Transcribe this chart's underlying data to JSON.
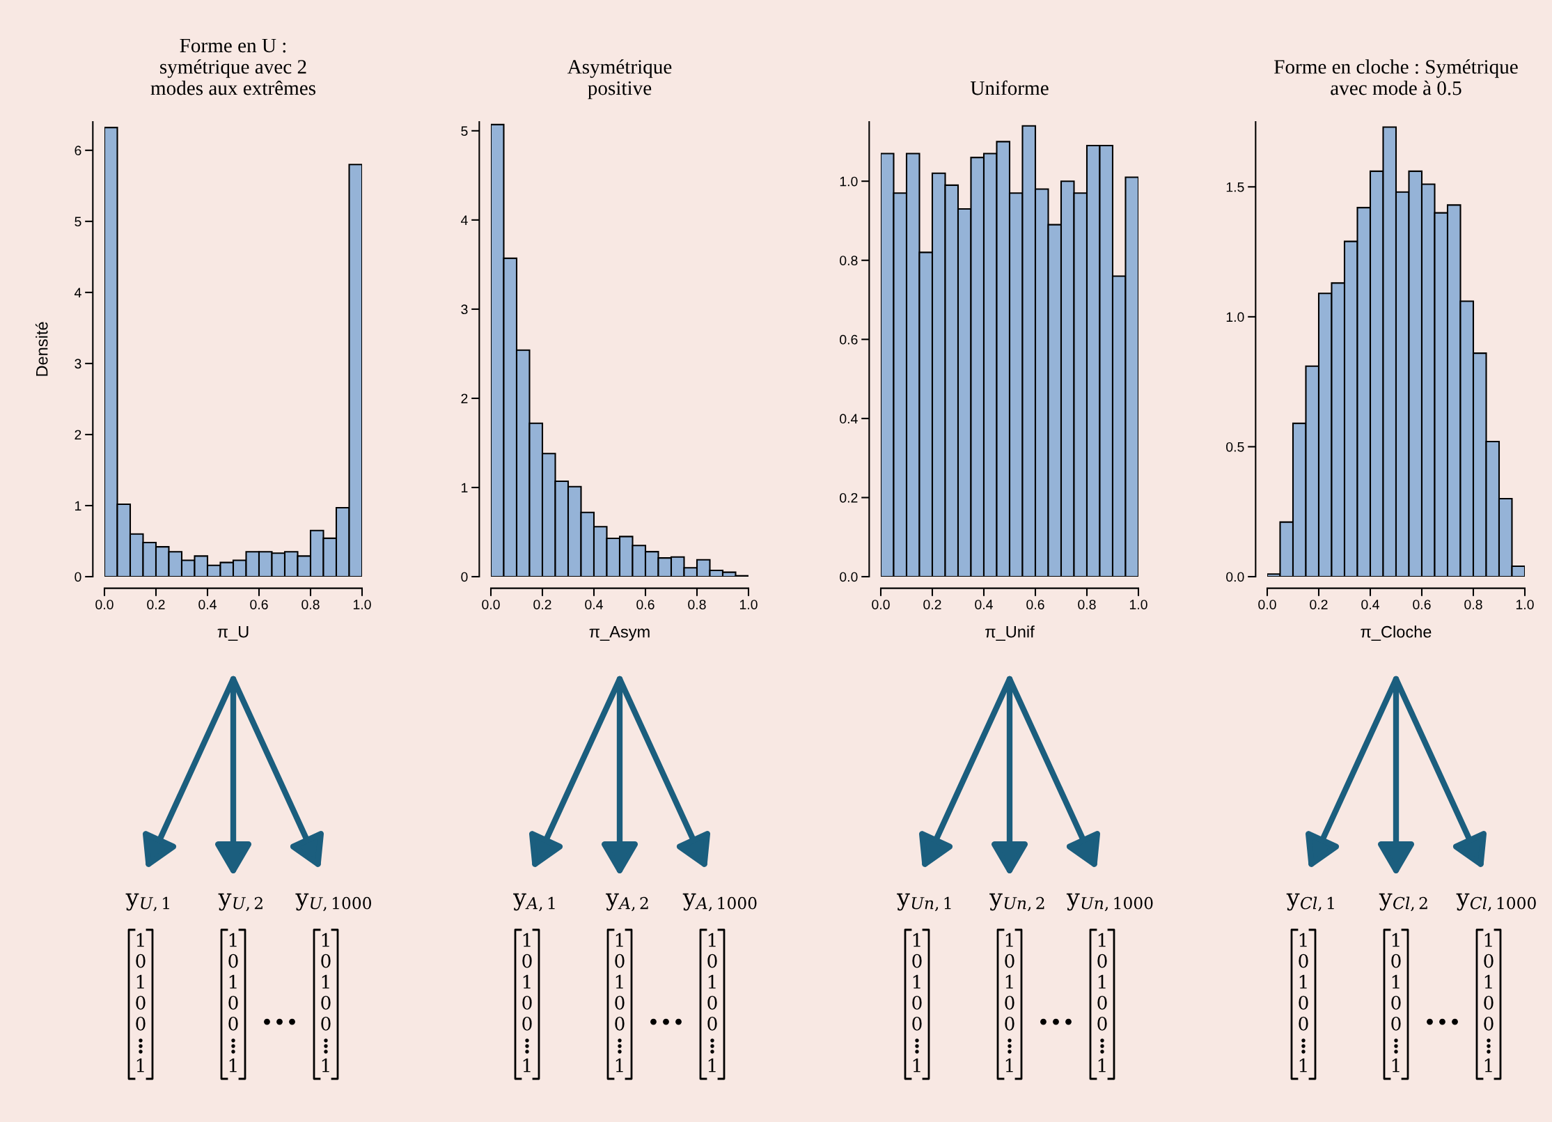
{
  "chart_data": [
    {
      "type": "histogram",
      "title": "Forme en U :\nsymétrique avec 2\nmodes aux extrêmes",
      "xlabel": "π_U",
      "ylabel": "Densité",
      "color": "#95b3d7",
      "bins": [
        0,
        0.05,
        0.1,
        0.15,
        0.2,
        0.25,
        0.3,
        0.35,
        0.4,
        0.45,
        0.5,
        0.55,
        0.6,
        0.65,
        0.7,
        0.75,
        0.8,
        0.85,
        0.9,
        0.95,
        1.0
      ],
      "values": [
        6.32,
        1.02,
        0.6,
        0.48,
        0.42,
        0.35,
        0.23,
        0.29,
        0.16,
        0.2,
        0.23,
        0.35,
        0.35,
        0.33,
        0.35,
        0.29,
        0.65,
        0.54,
        0.97,
        5.8
      ],
      "xlim": [
        0,
        1
      ],
      "xticks": [
        {
          "value": 0,
          "label": "0.0"
        },
        {
          "value": 0.2,
          "label": "0.2"
        },
        {
          "value": 0.4,
          "label": "0.4"
        },
        {
          "value": 0.6,
          "label": "0.6"
        },
        {
          "value": 0.8,
          "label": "0.8"
        },
        {
          "value": 1,
          "label": "1.0"
        }
      ],
      "ylim": [
        0,
        6.4
      ],
      "yticks": [
        0,
        1,
        2,
        3,
        4,
        5,
        6
      ],
      "annotations": [
        "y$_{U,1}$",
        "y$_{U,2}$",
        "y$_{U,1000}$",
        "1\n0\n1\n0\n0\n1",
        "1\n0\n1\n0\n0\n1",
        "1\n0\n1\n0\n0\n1",
        "•••"
      ]
    },
    {
      "type": "histogram",
      "title": "Asymétrique\npositive",
      "xlabel": "π_Asym",
      "color": "#95b3d7",
      "bins": [
        0,
        0.05,
        0.1,
        0.15,
        0.2,
        0.25,
        0.3,
        0.35,
        0.4,
        0.45,
        0.5,
        0.55,
        0.6,
        0.65,
        0.7,
        0.75,
        0.8,
        0.85,
        0.9,
        0.95,
        1.0
      ],
      "values": [
        5.07,
        3.57,
        2.54,
        1.72,
        1.38,
        1.07,
        1.01,
        0.72,
        0.56,
        0.43,
        0.45,
        0.35,
        0.28,
        0.21,
        0.22,
        0.1,
        0.19,
        0.07,
        0.05,
        0.01
      ],
      "xlim": [
        0,
        1
      ],
      "xticks": [
        {
          "value": 0,
          "label": "0.0"
        },
        {
          "value": 0.2,
          "label": "0.2"
        },
        {
          "value": 0.4,
          "label": "0.4"
        },
        {
          "value": 0.6,
          "label": "0.6"
        },
        {
          "value": 0.8,
          "label": "0.8"
        },
        {
          "value": 1,
          "label": "1.0"
        }
      ],
      "ylim": [
        0,
        5.1
      ],
      "yticks": [
        0,
        1,
        2,
        3,
        4,
        5
      ],
      "annotations": [
        "y$_{A,1}$",
        "y$_{A,2}$",
        "y$_{A,1000}$",
        "1\n0\n1\n0\n0\n1",
        "1\n0\n1\n0\n0\n1",
        "1\n0\n1\n0\n0\n1",
        "•••"
      ]
    },
    {
      "type": "histogram",
      "title": "Uniforme",
      "xlabel": "π_Unif",
      "color": "#95b3d7",
      "bins": [
        0,
        0.05,
        0.1,
        0.15,
        0.2,
        0.25,
        0.3,
        0.35,
        0.4,
        0.45,
        0.5,
        0.55,
        0.6,
        0.65,
        0.7,
        0.75,
        0.8,
        0.85,
        0.9,
        0.95,
        1.0
      ],
      "values": [
        1.07,
        0.97,
        1.07,
        0.82,
        1.02,
        0.99,
        0.93,
        1.06,
        1.07,
        1.1,
        0.97,
        1.14,
        0.98,
        0.89,
        1.0,
        0.97,
        1.09,
        1.09,
        0.76,
        1.01
      ],
      "xlim": [
        0,
        1
      ],
      "xticks": [
        {
          "value": 0,
          "label": "0.0"
        },
        {
          "value": 0.2,
          "label": "0.2"
        },
        {
          "value": 0.4,
          "label": "0.4"
        },
        {
          "value": 0.6,
          "label": "0.6"
        },
        {
          "value": 0.8,
          "label": "0.8"
        },
        {
          "value": 1,
          "label": "1.0"
        }
      ],
      "ylim": [
        0,
        1.15
      ],
      "yticks": [
        {
          "value": 0,
          "label": "0.0"
        },
        {
          "value": 0.2,
          "label": "0.2"
        },
        {
          "value": 0.4,
          "label": "0.4"
        },
        {
          "value": 0.6,
          "label": "0.6"
        },
        {
          "value": 0.8,
          "label": "0.8"
        },
        {
          "value": 1,
          "label": "1.0"
        }
      ],
      "annotations": [
        "y$_{Un,1}$",
        "y$_{Un,2}$",
        "y$_{Un,1000}$",
        "1\n0\n1\n0\n0\n1",
        "1\n0\n1\n0\n0\n1",
        "1\n0\n1\n0\n0\n1",
        "•••"
      ]
    },
    {
      "type": "histogram",
      "title": "Forme en cloche : Symétrique\navec mode à 0.5",
      "xlabel": "π_Cloche",
      "color": "#95b3d7",
      "bins": [
        0,
        0.05,
        0.1,
        0.15,
        0.2,
        0.25,
        0.3,
        0.35,
        0.4,
        0.45,
        0.5,
        0.55,
        0.6,
        0.65,
        0.7,
        0.75,
        0.8,
        0.85,
        0.9,
        0.95,
        1.0
      ],
      "values": [
        0.01,
        0.21,
        0.59,
        0.81,
        1.09,
        1.13,
        1.29,
        1.42,
        1.56,
        1.73,
        1.48,
        1.56,
        1.51,
        1.4,
        1.43,
        1.06,
        0.86,
        0.52,
        0.3,
        0.04
      ],
      "xlim": [
        0,
        1
      ],
      "xticks": [
        {
          "value": 0,
          "label": "0.0"
        },
        {
          "value": 0.2,
          "label": "0.2"
        },
        {
          "value": 0.4,
          "label": "0.4"
        },
        {
          "value": 0.6,
          "label": "0.6"
        },
        {
          "value": 0.8,
          "label": "0.8"
        },
        {
          "value": 1,
          "label": "1.0"
        }
      ],
      "ylim": [
        0,
        1.75
      ],
      "yticks": [
        {
          "value": 0,
          "label": "0.0"
        },
        {
          "value": 0.5,
          "label": "0.5"
        },
        {
          "value": 1,
          "label": "1.0"
        },
        {
          "value": 1.5,
          "label": "1.5"
        }
      ],
      "annotations": [
        "y$_{Cl,1}$",
        "y$_{Cl,2}$",
        "y$_{Cl,1000}$",
        "1\n0\n1\n0\n0\n1",
        "1\n0\n1\n0\n0\n1",
        "1\n0\n1\n0\n0\n1",
        "•••"
      ]
    }
  ]
}
